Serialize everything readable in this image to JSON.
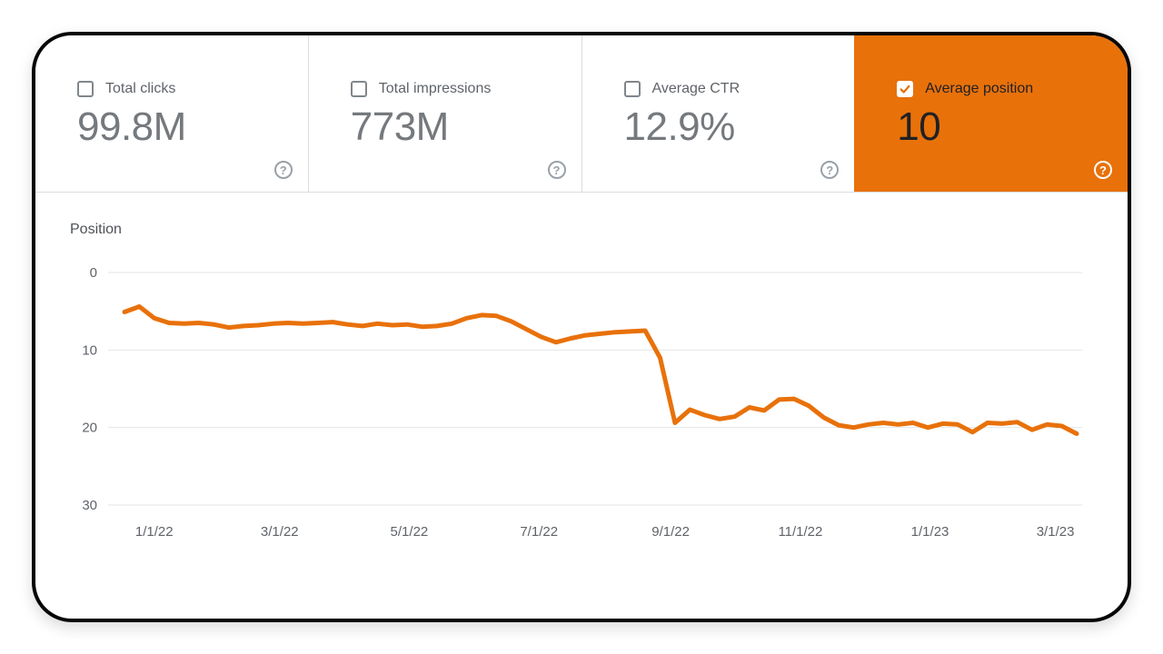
{
  "metrics": {
    "cards": [
      {
        "label": "Total clicks",
        "value": "99.8M",
        "checked": false,
        "selected": false
      },
      {
        "label": "Total impressions",
        "value": "773M",
        "checked": false,
        "selected": false
      },
      {
        "label": "Average CTR",
        "value": "12.9%",
        "checked": false,
        "selected": false
      },
      {
        "label": "Average position",
        "value": "10",
        "checked": true,
        "selected": true
      }
    ]
  },
  "colors": {
    "accent_orange": "#e8710a",
    "label_gray": "#5f6368",
    "value_gray": "#75797d",
    "divider": "#dadce0",
    "gridline": "#e3e6e8",
    "selected_text": "#202124"
  },
  "chart_data": {
    "type": "line",
    "title": "Position",
    "ylabel": "Position",
    "xlabel": "",
    "y_axis_inverted": true,
    "ylim": [
      0,
      30
    ],
    "y_ticks": [
      0,
      10,
      20,
      30
    ],
    "grid": "horizontal",
    "legend_position": "none",
    "weeks_total": 64,
    "x_tick_labels": [
      "1/1/22",
      "3/1/22",
      "5/1/22",
      "7/1/22",
      "9/1/22",
      "11/1/22",
      "1/1/23",
      "3/1/23"
    ],
    "x_tick_weeks": [
      2.0,
      10.43,
      19.14,
      27.86,
      36.71,
      45.43,
      54.14,
      62.57
    ],
    "series": [
      {
        "name": "Average position",
        "color": "#e8710a",
        "interval": "weekly",
        "values": [
          5.1,
          4.4,
          5.9,
          6.5,
          6.6,
          6.5,
          6.7,
          7.1,
          6.9,
          6.8,
          6.6,
          6.5,
          6.6,
          6.5,
          6.4,
          6.7,
          6.9,
          6.6,
          6.8,
          6.7,
          7.0,
          6.9,
          6.6,
          5.9,
          5.5,
          5.6,
          6.3,
          7.3,
          8.3,
          9.0,
          8.5,
          8.1,
          7.9,
          7.7,
          7.6,
          7.5,
          11.0,
          19.4,
          17.7,
          18.4,
          18.9,
          18.6,
          17.4,
          17.8,
          16.4,
          16.3,
          17.2,
          18.7,
          19.7,
          20.0,
          19.6,
          19.4,
          19.6,
          19.4,
          20.0,
          19.5,
          19.6,
          20.6,
          19.4,
          19.5,
          19.3,
          20.3,
          19.6,
          19.8,
          20.8
        ]
      }
    ]
  }
}
